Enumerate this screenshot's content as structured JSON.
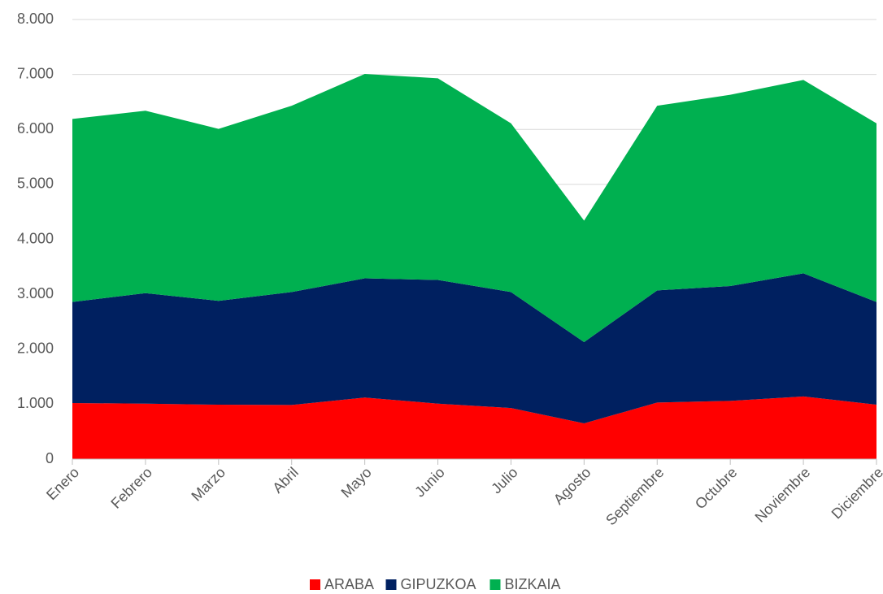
{
  "chart_data": {
    "type": "area",
    "stacked": true,
    "categories": [
      "Enero",
      "Febrero",
      "Marzo",
      "Abril",
      "Mayo",
      "Junio",
      "Julio",
      "Agosto",
      "Septiembre",
      "Octubre",
      "Noviembre",
      "Diciembre"
    ],
    "series": [
      {
        "name": "ARABA",
        "color": "#ff0000",
        "values": [
          1020,
          1010,
          990,
          985,
          1120,
          1010,
          930,
          650,
          1030,
          1060,
          1140,
          990
        ]
      },
      {
        "name": "GIPUZKOA",
        "color": "#002060",
        "values": [
          1840,
          2010,
          1890,
          2055,
          2170,
          2250,
          2110,
          1480,
          2040,
          2090,
          2240,
          1870
        ]
      },
      {
        "name": "BIZKAIA",
        "color": "#00b050",
        "values": [
          3330,
          3320,
          3130,
          3390,
          3720,
          3670,
          3070,
          2210,
          3360,
          3480,
          3520,
          3250
        ]
      }
    ],
    "ylim": [
      0,
      8000
    ],
    "yticks": [
      0,
      {
        "value": 1000,
        "label": "1.000"
      },
      {
        "value": 2000,
        "label": "2.000"
      },
      {
        "value": 3000,
        "label": "3.000"
      },
      {
        "value": 4000,
        "label": "4.000"
      },
      {
        "value": 5000,
        "label": "5.000"
      },
      {
        "value": 6000,
        "label": "6.000"
      },
      {
        "value": 7000,
        "label": "7.000"
      },
      {
        "value": 8000,
        "label": "8.000"
      }
    ],
    "grid": true,
    "legend": "bottom"
  }
}
